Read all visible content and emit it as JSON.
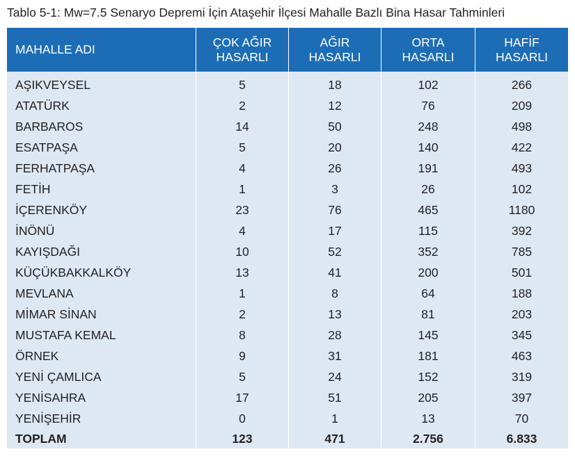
{
  "caption": "Tablo 5-1: Mw=7.5 Senaryo Depremi İçin Ataşehir İlçesi Mahalle Bazlı Bina Hasar Tahminleri",
  "header": {
    "name": "MAHALLE ADI",
    "cok_agir": [
      "ÇOK AĞIR",
      "HASARLI"
    ],
    "agir": [
      "AĞIR",
      "HASARLI"
    ],
    "orta": [
      "ORTA",
      "HASARLI"
    ],
    "hafif": [
      "HAFİF",
      "HASARLI"
    ]
  },
  "rows": [
    {
      "name": "AŞIKVEYSEL",
      "cok_agir": "5",
      "agir": "18",
      "orta": "102",
      "hafif": "266"
    },
    {
      "name": "ATATÜRK",
      "cok_agir": "2",
      "agir": "12",
      "orta": "76",
      "hafif": "209"
    },
    {
      "name": "BARBAROS",
      "cok_agir": "14",
      "agir": "50",
      "orta": "248",
      "hafif": "498"
    },
    {
      "name": "ESATPAŞA",
      "cok_agir": "5",
      "agir": "20",
      "orta": "140",
      "hafif": "422"
    },
    {
      "name": "FERHATPAŞA",
      "cok_agir": "4",
      "agir": "26",
      "orta": "191",
      "hafif": "493"
    },
    {
      "name": "FETİH",
      "cok_agir": "1",
      "agir": "3",
      "orta": "26",
      "hafif": "102"
    },
    {
      "name": "İÇERENKÖY",
      "cok_agir": "23",
      "agir": "76",
      "orta": "465",
      "hafif": "1180"
    },
    {
      "name": "İNÖNÜ",
      "cok_agir": "4",
      "agir": "17",
      "orta": "115",
      "hafif": "392"
    },
    {
      "name": "KAYIŞDAĞI",
      "cok_agir": "10",
      "agir": "52",
      "orta": "352",
      "hafif": "785"
    },
    {
      "name": "KÜÇÜKBAKKALKÖY",
      "cok_agir": "13",
      "agir": "41",
      "orta": "200",
      "hafif": "501"
    },
    {
      "name": "MEVLANA",
      "cok_agir": "1",
      "agir": "8",
      "orta": "64",
      "hafif": "188"
    },
    {
      "name": "MİMAR SİNAN",
      "cok_agir": "2",
      "agir": "13",
      "orta": "81",
      "hafif": "203"
    },
    {
      "name": "MUSTAFA KEMAL",
      "cok_agir": "8",
      "agir": "28",
      "orta": "145",
      "hafif": "345"
    },
    {
      "name": "ÖRNEK",
      "cok_agir": "9",
      "agir": "31",
      "orta": "181",
      "hafif": "463"
    },
    {
      "name": "YENİ ÇAMLICA",
      "cok_agir": "5",
      "agir": "24",
      "orta": "152",
      "hafif": "319"
    },
    {
      "name": "YENİSAHRA",
      "cok_agir": "17",
      "agir": "51",
      "orta": "205",
      "hafif": "397"
    },
    {
      "name": "YENİŞEHİR",
      "cok_agir": "0",
      "agir": "1",
      "orta": "13",
      "hafif": "70"
    }
  ],
  "total": {
    "name": "TOPLAM",
    "cok_agir": "123",
    "agir": "471",
    "orta": "2.756",
    "hafif": "6.833"
  }
}
